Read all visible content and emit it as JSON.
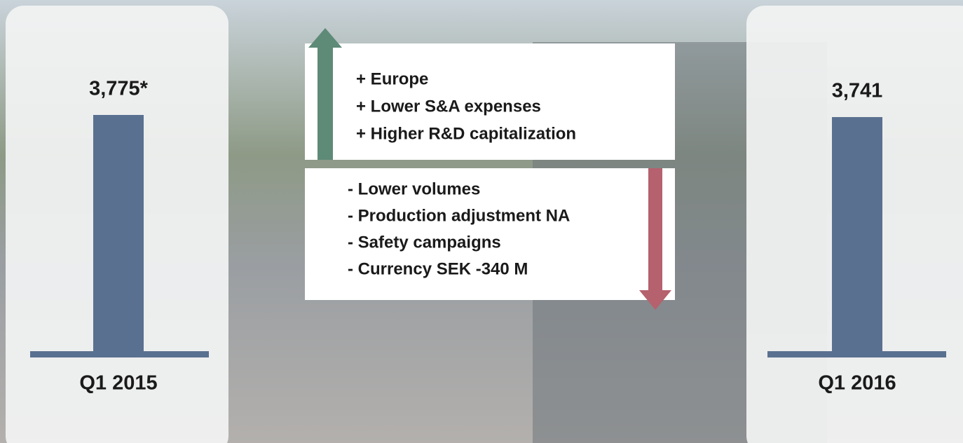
{
  "chart_data": {
    "type": "bar",
    "categories": [
      "Q1 2015",
      "Q1 2016"
    ],
    "values": [
      3775,
      3741
    ],
    "value_labels": [
      "3,775*",
      "3,741"
    ],
    "color": "#5a7090",
    "annotations": {
      "positive": [
        "+ Europe",
        "+ Lower S&A expenses",
        "+ Higher R&D capitalization"
      ],
      "negative": [
        "- Lower volumes",
        "- Production adjustment NA",
        "- Safety campaigns",
        "- Currency SEK -340 M"
      ]
    }
  }
}
